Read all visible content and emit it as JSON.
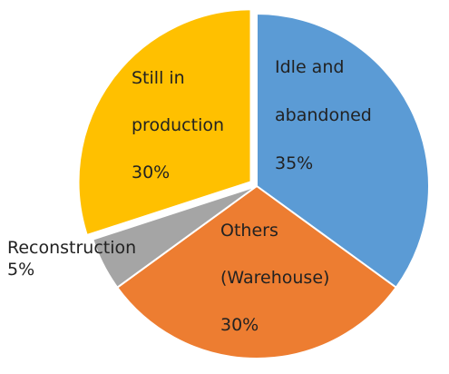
{
  "chart_data": {
    "type": "pie",
    "categories": [
      "Idle and abandoned",
      "Others (Warehouse)",
      "Reconstruction",
      "Still in production"
    ],
    "values": [
      35,
      30,
      5,
      30
    ],
    "value_labels": [
      "35%",
      "30%",
      "5%",
      "30%"
    ],
    "colors": [
      "#5b9bd5",
      "#ed7d31",
      "#a5a5a5",
      "#ffc000"
    ],
    "exploded": [
      false,
      false,
      false,
      true
    ]
  }
}
